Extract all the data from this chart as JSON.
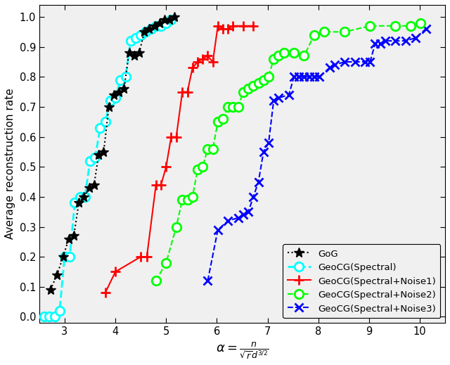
{
  "title": "",
  "xlabel": "$\\alpha = \\frac{n}{\\sqrt{r}d^{3/2}}$",
  "ylabel": "Average reconstruction rate",
  "xlim": [
    2.5,
    10.5
  ],
  "ylim": [
    -0.02,
    1.04
  ],
  "xticks": [
    3,
    4,
    5,
    6,
    7,
    8,
    9,
    10
  ],
  "yticks": [
    0,
    0.1,
    0.2,
    0.3,
    0.4,
    0.5,
    0.6,
    0.7,
    0.8,
    0.9,
    1.0
  ],
  "GoG_x": [
    2.72,
    2.85,
    2.97,
    3.08,
    3.18,
    3.28,
    3.38,
    3.48,
    3.58,
    3.67,
    3.77,
    3.87,
    3.97,
    4.07,
    4.17,
    4.27,
    4.37,
    4.47,
    4.57,
    4.67,
    4.77,
    4.87,
    4.97,
    5.07,
    5.17
  ],
  "GoG_y": [
    0.09,
    0.14,
    0.2,
    0.26,
    0.27,
    0.38,
    0.4,
    0.43,
    0.44,
    0.54,
    0.55,
    0.7,
    0.74,
    0.75,
    0.76,
    0.88,
    0.87,
    0.88,
    0.95,
    0.96,
    0.97,
    0.98,
    0.99,
    0.99,
    1.0
  ],
  "Spectral_x": [
    2.6,
    2.7,
    2.8,
    2.9,
    3.0,
    3.1,
    3.2,
    3.3,
    3.4,
    3.5,
    3.6,
    3.7,
    3.8,
    3.9,
    4.0,
    4.1,
    4.2,
    4.3,
    4.4,
    4.5,
    4.6,
    4.7,
    4.8,
    4.9,
    5.0,
    5.1
  ],
  "Spectral_y": [
    0.0,
    0.0,
    0.0,
    0.02,
    0.2,
    0.2,
    0.38,
    0.4,
    0.4,
    0.52,
    0.53,
    0.63,
    0.65,
    0.72,
    0.73,
    0.79,
    0.8,
    0.92,
    0.93,
    0.94,
    0.95,
    0.96,
    0.97,
    0.97,
    0.98,
    0.99
  ],
  "Noise1_x": [
    3.8,
    4.0,
    4.5,
    4.62,
    4.8,
    4.9,
    5.0,
    5.1,
    5.2,
    5.32,
    5.42,
    5.52,
    5.62,
    5.72,
    5.82,
    5.92,
    6.02,
    6.12,
    6.22,
    6.32,
    6.52,
    6.72
  ],
  "Noise1_y": [
    0.08,
    0.15,
    0.2,
    0.2,
    0.44,
    0.44,
    0.5,
    0.6,
    0.6,
    0.75,
    0.75,
    0.83,
    0.85,
    0.86,
    0.87,
    0.85,
    0.97,
    0.96,
    0.96,
    0.97,
    0.97,
    0.97
  ],
  "Noise2_x": [
    4.8,
    5.0,
    5.2,
    5.32,
    5.42,
    5.52,
    5.62,
    5.72,
    5.82,
    5.92,
    6.02,
    6.12,
    6.22,
    6.32,
    6.42,
    6.52,
    6.62,
    6.72,
    6.82,
    6.92,
    7.02,
    7.12,
    7.22,
    7.32,
    7.52,
    7.72,
    7.92,
    8.12,
    8.52,
    9.02,
    9.52,
    9.82,
    10.02
  ],
  "Noise2_y": [
    0.12,
    0.18,
    0.3,
    0.39,
    0.39,
    0.4,
    0.49,
    0.5,
    0.56,
    0.56,
    0.65,
    0.66,
    0.7,
    0.7,
    0.7,
    0.75,
    0.76,
    0.77,
    0.78,
    0.79,
    0.8,
    0.86,
    0.87,
    0.88,
    0.88,
    0.87,
    0.94,
    0.95,
    0.95,
    0.97,
    0.97,
    0.97,
    0.98
  ],
  "Noise3_x": [
    5.82,
    6.02,
    6.22,
    6.42,
    6.52,
    6.62,
    6.72,
    6.82,
    6.92,
    7.02,
    7.12,
    7.22,
    7.42,
    7.52,
    7.62,
    7.72,
    7.82,
    7.92,
    8.02,
    8.22,
    8.32,
    8.52,
    8.72,
    8.92,
    9.02,
    9.12,
    9.22,
    9.32,
    9.52,
    9.72,
    9.92,
    10.12
  ],
  "Noise3_y": [
    0.12,
    0.29,
    0.32,
    0.33,
    0.34,
    0.35,
    0.4,
    0.45,
    0.55,
    0.58,
    0.72,
    0.73,
    0.74,
    0.8,
    0.8,
    0.8,
    0.8,
    0.8,
    0.8,
    0.83,
    0.84,
    0.85,
    0.85,
    0.85,
    0.85,
    0.91,
    0.91,
    0.92,
    0.92,
    0.92,
    0.93,
    0.96
  ],
  "GoG_color": "#000000",
  "Spectral_color": "#00FFFF",
  "Noise1_color": "#FF0000",
  "Noise2_color": "#00FF00",
  "Noise3_color": "#0000FF",
  "bg_color": "#F0F0F0",
  "fig_color": "#FFFFFF"
}
